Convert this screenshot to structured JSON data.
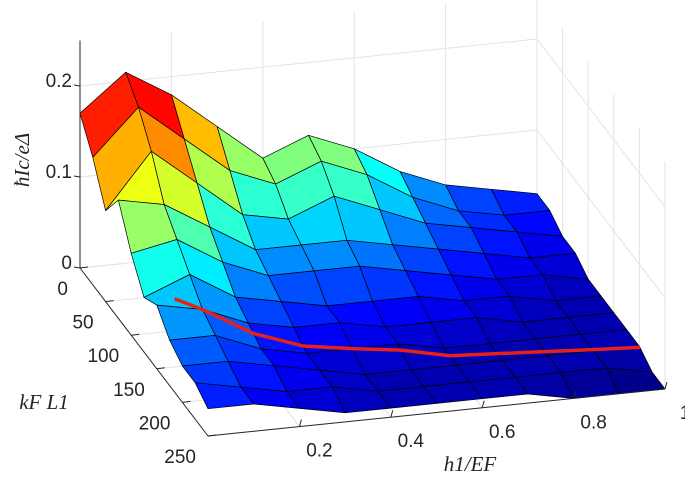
{
  "chart_data": {
    "type": "surface",
    "xlabel": "h1/EF",
    "ylabel": "kF L1",
    "zlabel": "ħIc/eΔ",
    "x": [
      0,
      0.1,
      0.2,
      0.3,
      0.4,
      0.5,
      0.6,
      0.7,
      0.8,
      0.9,
      1
    ],
    "y": [
      0,
      25,
      50,
      75,
      100,
      125,
      150,
      175,
      200,
      225,
      250
    ],
    "z": [
      [
        0.17,
        0.21,
        0.18,
        0.14,
        0.1,
        0.12,
        0.1,
        0.07,
        0.05,
        0.04,
        0.03
      ],
      [
        0.14,
        0.19,
        0.15,
        0.11,
        0.09,
        0.11,
        0.09,
        0.06,
        0.04,
        0.03,
        0.03
      ],
      [
        0.1,
        0.16,
        0.12,
        0.08,
        0.07,
        0.09,
        0.07,
        0.05,
        0.04,
        0.03,
        0.02
      ],
      [
        0.13,
        0.12,
        0.09,
        0.06,
        0.06,
        0.06,
        0.05,
        0.04,
        0.03,
        0.02,
        0.02
      ],
      [
        0.09,
        0.1,
        0.07,
        0.05,
        0.05,
        0.05,
        0.04,
        0.03,
        0.02,
        0.02,
        0.01
      ],
      [
        0.06,
        0.08,
        0.05,
        0.04,
        0.03,
        0.03,
        0.03,
        0.02,
        0.02,
        0.01,
        0.01
      ],
      [
        0.07,
        0.06,
        0.04,
        0.03,
        0.03,
        0.02,
        0.02,
        0.02,
        0.01,
        0.01,
        0.01
      ],
      [
        0.05,
        0.05,
        0.03,
        0.02,
        0.02,
        0.02,
        0.01,
        0.01,
        0.01,
        0.01,
        0.01
      ],
      [
        0.04,
        0.04,
        0.03,
        0.02,
        0.01,
        0.01,
        0.01,
        0.01,
        0.01,
        0.01,
        0.01
      ],
      [
        0.04,
        0.03,
        0.02,
        0.02,
        0.01,
        0.01,
        0.01,
        0.01,
        0.01,
        0.01,
        0.0
      ],
      [
        0.03,
        0.03,
        0.02,
        0.01,
        0.01,
        0.01,
        0.01,
        0.01,
        0.0,
        0.0,
        0.0
      ]
    ],
    "xlim": [
      0,
      1
    ],
    "xticks": [
      0.2,
      0.4,
      0.6,
      0.8,
      1
    ],
    "ylim": [
      0,
      250
    ],
    "yticks": [
      0,
      50,
      100,
      150,
      200,
      250
    ],
    "zlim": [
      0,
      0.25
    ],
    "zticks": [
      0,
      0.1,
      0.2
    ],
    "colormap": "jet",
    "grid": true,
    "edge_color": "#000000",
    "curve": {
      "color": "#e8201a",
      "x": [
        0.05,
        0.1,
        0.2,
        0.3,
        0.4,
        0.5,
        0.6,
        0.7,
        0.8,
        0.9,
        1
      ],
      "y": [
        140,
        150,
        160,
        168,
        175,
        181,
        186,
        190,
        194,
        198,
        201
      ]
    }
  }
}
